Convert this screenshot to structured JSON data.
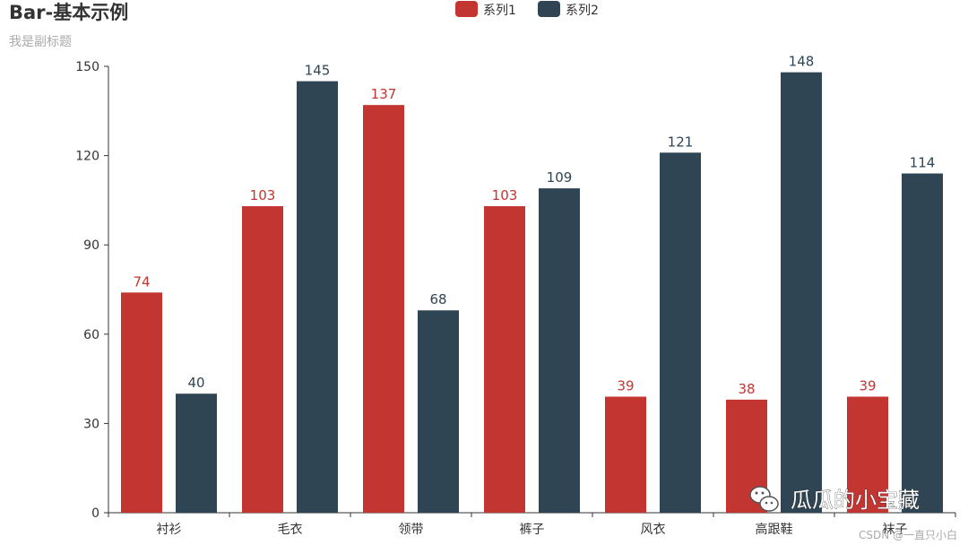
{
  "chart_data": {
    "type": "bar",
    "title": "Bar-基本示例",
    "subtitle": "我是副标题",
    "categories": [
      "衬衫",
      "毛衣",
      "领带",
      "裤子",
      "风衣",
      "高跟鞋",
      "袜子"
    ],
    "series": [
      {
        "name": "系列1",
        "color": "#c23531",
        "values": [
          74,
          103,
          137,
          103,
          39,
          38,
          39
        ]
      },
      {
        "name": "系列2",
        "color": "#2f4554",
        "values": [
          40,
          145,
          68,
          109,
          121,
          148,
          114
        ]
      }
    ],
    "ylim": [
      0,
      150
    ],
    "yticks": [
      0,
      30,
      60,
      90,
      120,
      150
    ],
    "xlabel": "",
    "ylabel": "",
    "grid": false,
    "legend_position": "top-center",
    "data_labels": "top"
  },
  "watermark": {
    "text": "瓜瓜的小宝藏",
    "icon": "wechat-icon"
  },
  "credit": "CSDN @一直只小白"
}
